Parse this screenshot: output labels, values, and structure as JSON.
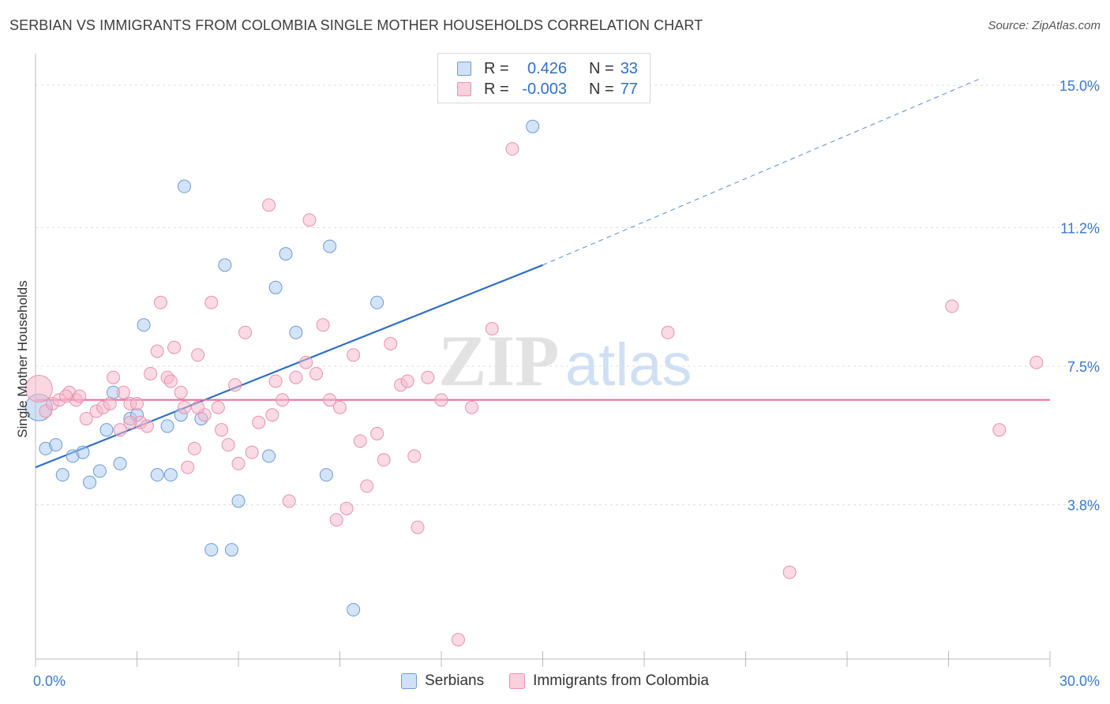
{
  "title": "SERBIAN VS IMMIGRANTS FROM COLOMBIA SINGLE MOTHER HOUSEHOLDS CORRELATION CHART",
  "source": "Source: ZipAtlas.com",
  "watermark": {
    "zip": "ZIP",
    "atlas": "atlas"
  },
  "legend": {
    "r_label": "R =",
    "n_label": "N =",
    "rows": [
      {
        "name": "Serbians",
        "r": "0.426",
        "n": "33",
        "color": "#a9c9ef"
      },
      {
        "name": "Immigrants from Colombia",
        "r": "-0.003",
        "n": "77",
        "color": "#f5b6c9"
      }
    ]
  },
  "chart_data": {
    "type": "scatter",
    "xlabel": "",
    "ylabel": "Single Mother Households",
    "xlim": [
      0,
      30
    ],
    "ylim": [
      0,
      15.8
    ],
    "x_tick_labels": {
      "min": "0.0%",
      "max": "30.0%"
    },
    "y_ticks": [
      {
        "value": 3.8,
        "label": "3.8%"
      },
      {
        "value": 7.5,
        "label": "7.5%"
      },
      {
        "value": 11.2,
        "label": "11.2%"
      },
      {
        "value": 15.0,
        "label": "15.0%"
      }
    ],
    "grid": true,
    "series": [
      {
        "name": "Serbians",
        "color": "#a9c9ef",
        "stroke": "#6b9bd6",
        "line_color": "#2f6fc6",
        "trend": {
          "x0": 0,
          "y0": 4.8,
          "x1": 15,
          "y1": 10.2,
          "dash_to_x": 28,
          "dash_to_y": 15.2
        },
        "points": [
          [
            0.1,
            6.4
          ],
          [
            0.3,
            5.3
          ],
          [
            0.6,
            5.4
          ],
          [
            0.8,
            4.6
          ],
          [
            1.1,
            5.1
          ],
          [
            1.4,
            5.2
          ],
          [
            1.6,
            4.4
          ],
          [
            1.9,
            4.7
          ],
          [
            2.1,
            5.8
          ],
          [
            2.3,
            6.8
          ],
          [
            2.5,
            4.9
          ],
          [
            2.8,
            6.1
          ],
          [
            3.0,
            6.2
          ],
          [
            3.2,
            8.6
          ],
          [
            3.6,
            4.6
          ],
          [
            3.9,
            5.9
          ],
          [
            4.0,
            4.6
          ],
          [
            4.3,
            6.2
          ],
          [
            4.4,
            12.3
          ],
          [
            4.9,
            6.1
          ],
          [
            5.2,
            2.6
          ],
          [
            5.6,
            10.2
          ],
          [
            5.8,
            2.6
          ],
          [
            6.0,
            3.9
          ],
          [
            6.9,
            5.1
          ],
          [
            7.1,
            9.6
          ],
          [
            7.4,
            10.5
          ],
          [
            7.7,
            8.4
          ],
          [
            8.6,
            4.6
          ],
          [
            8.7,
            10.7
          ],
          [
            9.4,
            1.0
          ],
          [
            10.1,
            9.2
          ],
          [
            14.7,
            13.9
          ]
        ]
      },
      {
        "name": "Immigrants from Colombia",
        "color": "#f5b6c9",
        "stroke": "#e693ae",
        "line_color": "#e8739a",
        "trend": {
          "x0": 0,
          "y0": 6.6,
          "x1": 30,
          "y1": 6.6
        },
        "points": [
          [
            0.1,
            6.9
          ],
          [
            0.3,
            6.3
          ],
          [
            0.5,
            6.5
          ],
          [
            0.7,
            6.6
          ],
          [
            1.0,
            6.8
          ],
          [
            1.2,
            6.6
          ],
          [
            1.5,
            6.1
          ],
          [
            1.8,
            6.3
          ],
          [
            2.0,
            6.4
          ],
          [
            2.2,
            6.5
          ],
          [
            2.3,
            7.2
          ],
          [
            2.5,
            5.8
          ],
          [
            2.6,
            6.8
          ],
          [
            2.8,
            6.5
          ],
          [
            3.0,
            6.5
          ],
          [
            3.1,
            6.0
          ],
          [
            3.3,
            5.9
          ],
          [
            3.4,
            7.3
          ],
          [
            3.6,
            7.9
          ],
          [
            3.7,
            9.2
          ],
          [
            3.9,
            7.2
          ],
          [
            4.0,
            7.1
          ],
          [
            4.1,
            8.0
          ],
          [
            4.3,
            6.8
          ],
          [
            4.4,
            6.4
          ],
          [
            4.5,
            4.8
          ],
          [
            4.7,
            5.3
          ],
          [
            4.8,
            7.8
          ],
          [
            5.0,
            6.2
          ],
          [
            5.2,
            9.2
          ],
          [
            5.4,
            6.4
          ],
          [
            5.5,
            5.8
          ],
          [
            5.7,
            5.4
          ],
          [
            5.9,
            7.0
          ],
          [
            6.0,
            4.9
          ],
          [
            6.2,
            8.4
          ],
          [
            6.4,
            5.2
          ],
          [
            6.6,
            6.0
          ],
          [
            6.9,
            11.8
          ],
          [
            7.0,
            6.2
          ],
          [
            7.1,
            7.1
          ],
          [
            7.3,
            6.6
          ],
          [
            7.5,
            3.9
          ],
          [
            7.7,
            7.2
          ],
          [
            8.0,
            7.6
          ],
          [
            8.1,
            11.4
          ],
          [
            8.3,
            7.3
          ],
          [
            8.5,
            8.6
          ],
          [
            8.7,
            6.6
          ],
          [
            8.9,
            3.4
          ],
          [
            9.0,
            6.4
          ],
          [
            9.2,
            3.7
          ],
          [
            9.4,
            7.8
          ],
          [
            9.6,
            5.5
          ],
          [
            9.8,
            4.3
          ],
          [
            10.1,
            5.7
          ],
          [
            10.3,
            5.0
          ],
          [
            10.5,
            8.1
          ],
          [
            10.8,
            7.0
          ],
          [
            11.0,
            7.1
          ],
          [
            11.2,
            5.1
          ],
          [
            11.3,
            3.2
          ],
          [
            11.6,
            7.2
          ],
          [
            12.0,
            6.6
          ],
          [
            12.5,
            0.2
          ],
          [
            12.9,
            6.4
          ],
          [
            13.5,
            8.5
          ],
          [
            14.1,
            13.3
          ],
          [
            18.7,
            8.4
          ],
          [
            22.3,
            2.0
          ],
          [
            27.1,
            9.1
          ],
          [
            28.5,
            5.8
          ],
          [
            29.6,
            7.6
          ],
          [
            1.3,
            6.7
          ],
          [
            2.8,
            6.0
          ],
          [
            4.8,
            6.4
          ],
          [
            0.9,
            6.7
          ]
        ]
      }
    ]
  }
}
